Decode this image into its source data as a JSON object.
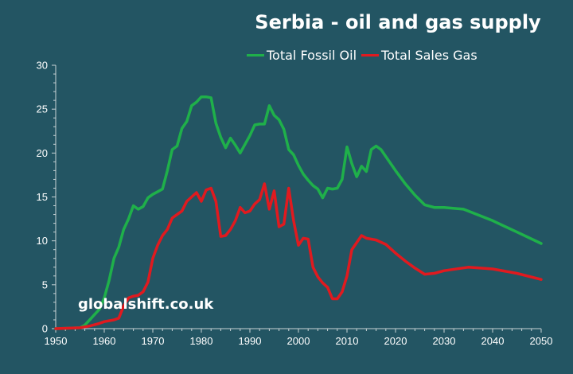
{
  "chart_data": {
    "type": "line",
    "title": "Serbia - oil and gas supply",
    "xlabel": "",
    "ylabel": "",
    "xlim": [
      1950,
      2050
    ],
    "ylim": [
      0,
      30
    ],
    "x_ticks": [
      1950,
      1960,
      1970,
      1980,
      1990,
      2000,
      2010,
      2020,
      2030,
      2040,
      2050
    ],
    "y_ticks": [
      0,
      5,
      10,
      15,
      20,
      25,
      30
    ],
    "grid": false,
    "legend_position": "top-right",
    "watermark": "globalshift.co.uk",
    "series": [
      {
        "name": "Total Fossil Oil",
        "color": "#1fb04a",
        "points": [
          [
            1950,
            0
          ],
          [
            1955,
            0.1
          ],
          [
            1956,
            0.4
          ],
          [
            1957,
            1.0
          ],
          [
            1958,
            1.6
          ],
          [
            1959,
            2.2
          ],
          [
            1960,
            3.5
          ],
          [
            1961,
            5.5
          ],
          [
            1962,
            8.0
          ],
          [
            1963,
            9.3
          ],
          [
            1964,
            11.3
          ],
          [
            1965,
            12.5
          ],
          [
            1966,
            14.0
          ],
          [
            1967,
            13.6
          ],
          [
            1968,
            13.9
          ],
          [
            1969,
            14.9
          ],
          [
            1970,
            15.3
          ],
          [
            1971,
            15.6
          ],
          [
            1972,
            15.9
          ],
          [
            1973,
            18.0
          ],
          [
            1974,
            20.4
          ],
          [
            1975,
            20.8
          ],
          [
            1976,
            22.8
          ],
          [
            1977,
            23.6
          ],
          [
            1978,
            25.4
          ],
          [
            1979,
            25.8
          ],
          [
            1980,
            26.4
          ],
          [
            1981,
            26.4
          ],
          [
            1982,
            26.3
          ],
          [
            1983,
            23.4
          ],
          [
            1984,
            21.8
          ],
          [
            1985,
            20.6
          ],
          [
            1986,
            21.7
          ],
          [
            1987,
            20.9
          ],
          [
            1988,
            20.0
          ],
          [
            1989,
            21.0
          ],
          [
            1990,
            22.0
          ],
          [
            1991,
            23.2
          ],
          [
            1992,
            23.3
          ],
          [
            1993,
            23.3
          ],
          [
            1994,
            25.4
          ],
          [
            1995,
            24.3
          ],
          [
            1996,
            23.8
          ],
          [
            1997,
            22.7
          ],
          [
            1998,
            20.4
          ],
          [
            1999,
            19.8
          ],
          [
            2000,
            18.6
          ],
          [
            2001,
            17.6
          ],
          [
            2002,
            16.9
          ],
          [
            2003,
            16.3
          ],
          [
            2004,
            15.9
          ],
          [
            2005,
            14.9
          ],
          [
            2006,
            16.0
          ],
          [
            2007,
            15.9
          ],
          [
            2008,
            16.0
          ],
          [
            2009,
            17.0
          ],
          [
            2010,
            20.7
          ],
          [
            2011,
            18.8
          ],
          [
            2012,
            17.3
          ],
          [
            2013,
            18.5
          ],
          [
            2014,
            17.9
          ],
          [
            2015,
            20.4
          ],
          [
            2016,
            20.8
          ],
          [
            2017,
            20.4
          ],
          [
            2018,
            19.6
          ],
          [
            2020,
            18.0
          ],
          [
            2022,
            16.5
          ],
          [
            2024,
            15.2
          ],
          [
            2026,
            14.1
          ],
          [
            2028,
            13.8
          ],
          [
            2030,
            13.8
          ],
          [
            2034,
            13.6
          ],
          [
            2040,
            12.3
          ],
          [
            2045,
            11.0
          ],
          [
            2050,
            9.7
          ]
        ]
      },
      {
        "name": "Total Sales Gas",
        "color": "#e01a1f",
        "points": [
          [
            1950,
            0
          ],
          [
            1955,
            0.1
          ],
          [
            1957,
            0.3
          ],
          [
            1959,
            0.6
          ],
          [
            1960,
            0.8
          ],
          [
            1962,
            1.0
          ],
          [
            1963,
            1.2
          ],
          [
            1964,
            2.6
          ],
          [
            1965,
            3.5
          ],
          [
            1966,
            3.7
          ],
          [
            1967,
            3.8
          ],
          [
            1968,
            4.2
          ],
          [
            1969,
            5.3
          ],
          [
            1970,
            8.0
          ],
          [
            1971,
            9.5
          ],
          [
            1972,
            10.6
          ],
          [
            1973,
            11.3
          ],
          [
            1974,
            12.6
          ],
          [
            1975,
            13.0
          ],
          [
            1976,
            13.4
          ],
          [
            1977,
            14.5
          ],
          [
            1978,
            15.0
          ],
          [
            1979,
            15.5
          ],
          [
            1980,
            14.5
          ],
          [
            1981,
            15.8
          ],
          [
            1982,
            16.0
          ],
          [
            1983,
            14.5
          ],
          [
            1984,
            10.5
          ],
          [
            1985,
            10.6
          ],
          [
            1986,
            11.3
          ],
          [
            1987,
            12.3
          ],
          [
            1988,
            13.8
          ],
          [
            1989,
            13.2
          ],
          [
            1990,
            13.4
          ],
          [
            1991,
            14.2
          ],
          [
            1992,
            14.7
          ],
          [
            1993,
            16.5
          ],
          [
            1994,
            13.6
          ],
          [
            1995,
            15.7
          ],
          [
            1996,
            11.6
          ],
          [
            1997,
            11.9
          ],
          [
            1998,
            16.0
          ],
          [
            1999,
            12.3
          ],
          [
            2000,
            9.5
          ],
          [
            2001,
            10.3
          ],
          [
            2002,
            10.2
          ],
          [
            2003,
            7.0
          ],
          [
            2004,
            5.9
          ],
          [
            2005,
            5.2
          ],
          [
            2006,
            4.7
          ],
          [
            2007,
            3.4
          ],
          [
            2008,
            3.4
          ],
          [
            2009,
            4.2
          ],
          [
            2010,
            6.0
          ],
          [
            2011,
            9.0
          ],
          [
            2012,
            9.8
          ],
          [
            2013,
            10.6
          ],
          [
            2014,
            10.3
          ],
          [
            2016,
            10.1
          ],
          [
            2018,
            9.6
          ],
          [
            2020,
            8.6
          ],
          [
            2022,
            7.7
          ],
          [
            2024,
            6.9
          ],
          [
            2026,
            6.2
          ],
          [
            2028,
            6.3
          ],
          [
            2030,
            6.6
          ],
          [
            2035,
            7.0
          ],
          [
            2040,
            6.8
          ],
          [
            2045,
            6.3
          ],
          [
            2050,
            5.6
          ]
        ]
      }
    ]
  }
}
